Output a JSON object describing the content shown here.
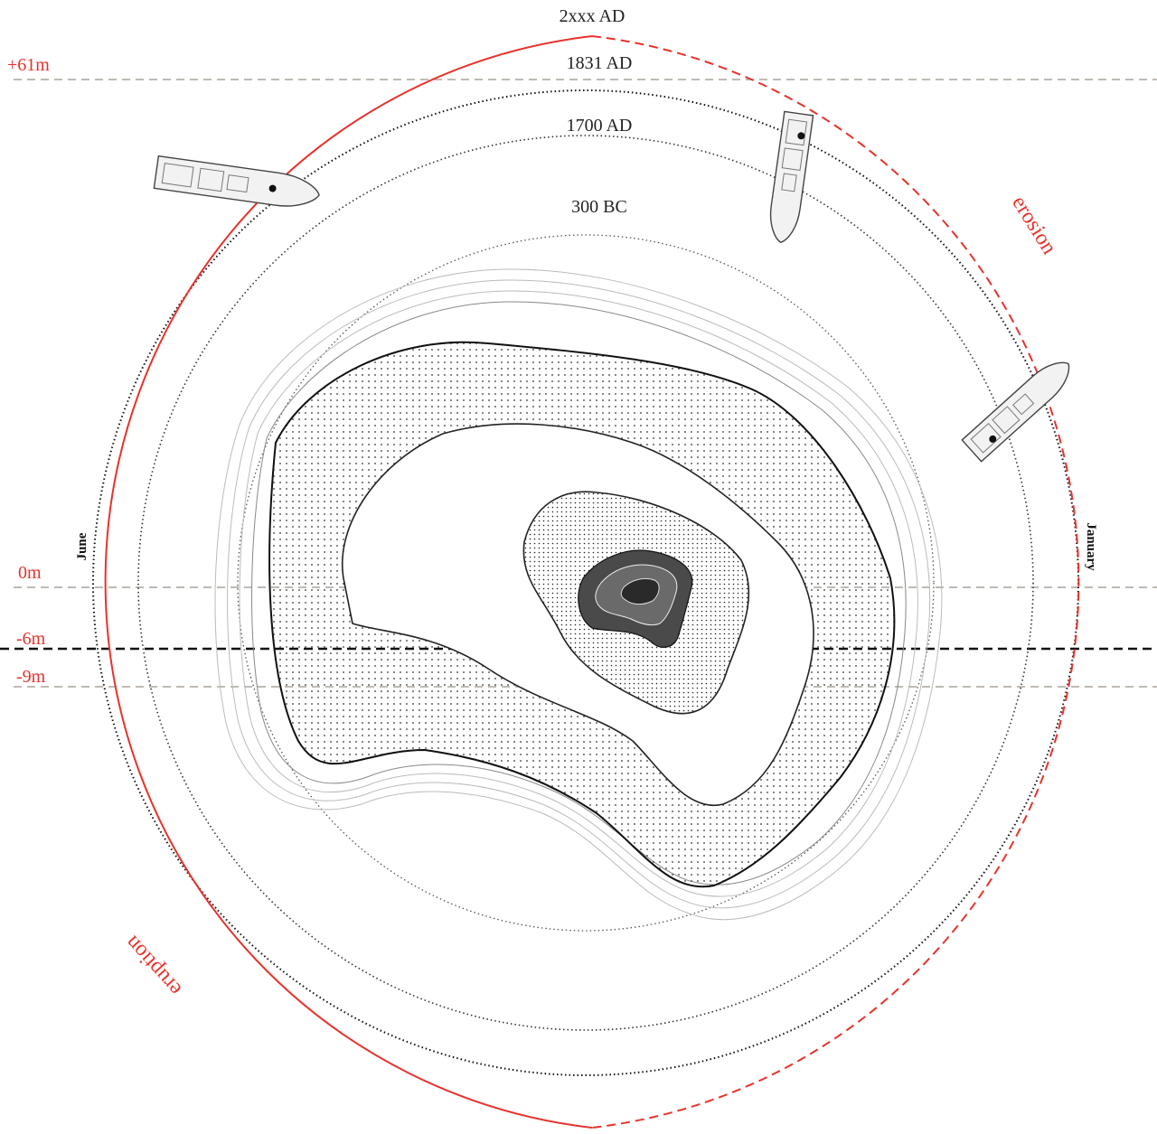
{
  "era_labels": {
    "e2xxx": "2xxx AD",
    "e1831": "1831 AD",
    "e1700": "1700 AD",
    "e300bc": "300 BC"
  },
  "level_labels": {
    "plus61": "+61m",
    "zero": "0m",
    "minus6": "-6m",
    "minus9": "-9m"
  },
  "month_labels": {
    "june": "June",
    "january": "January"
  },
  "process_labels": {
    "erosion": "erosion",
    "eruption": "eruption"
  },
  "colors": {
    "accent_red": "#e8322b",
    "dashed_gray": "#aaa39c",
    "ink": "#111111"
  },
  "icons": [
    "ship-icon",
    "ship-icon",
    "ship-icon",
    "island-contour-map"
  ]
}
